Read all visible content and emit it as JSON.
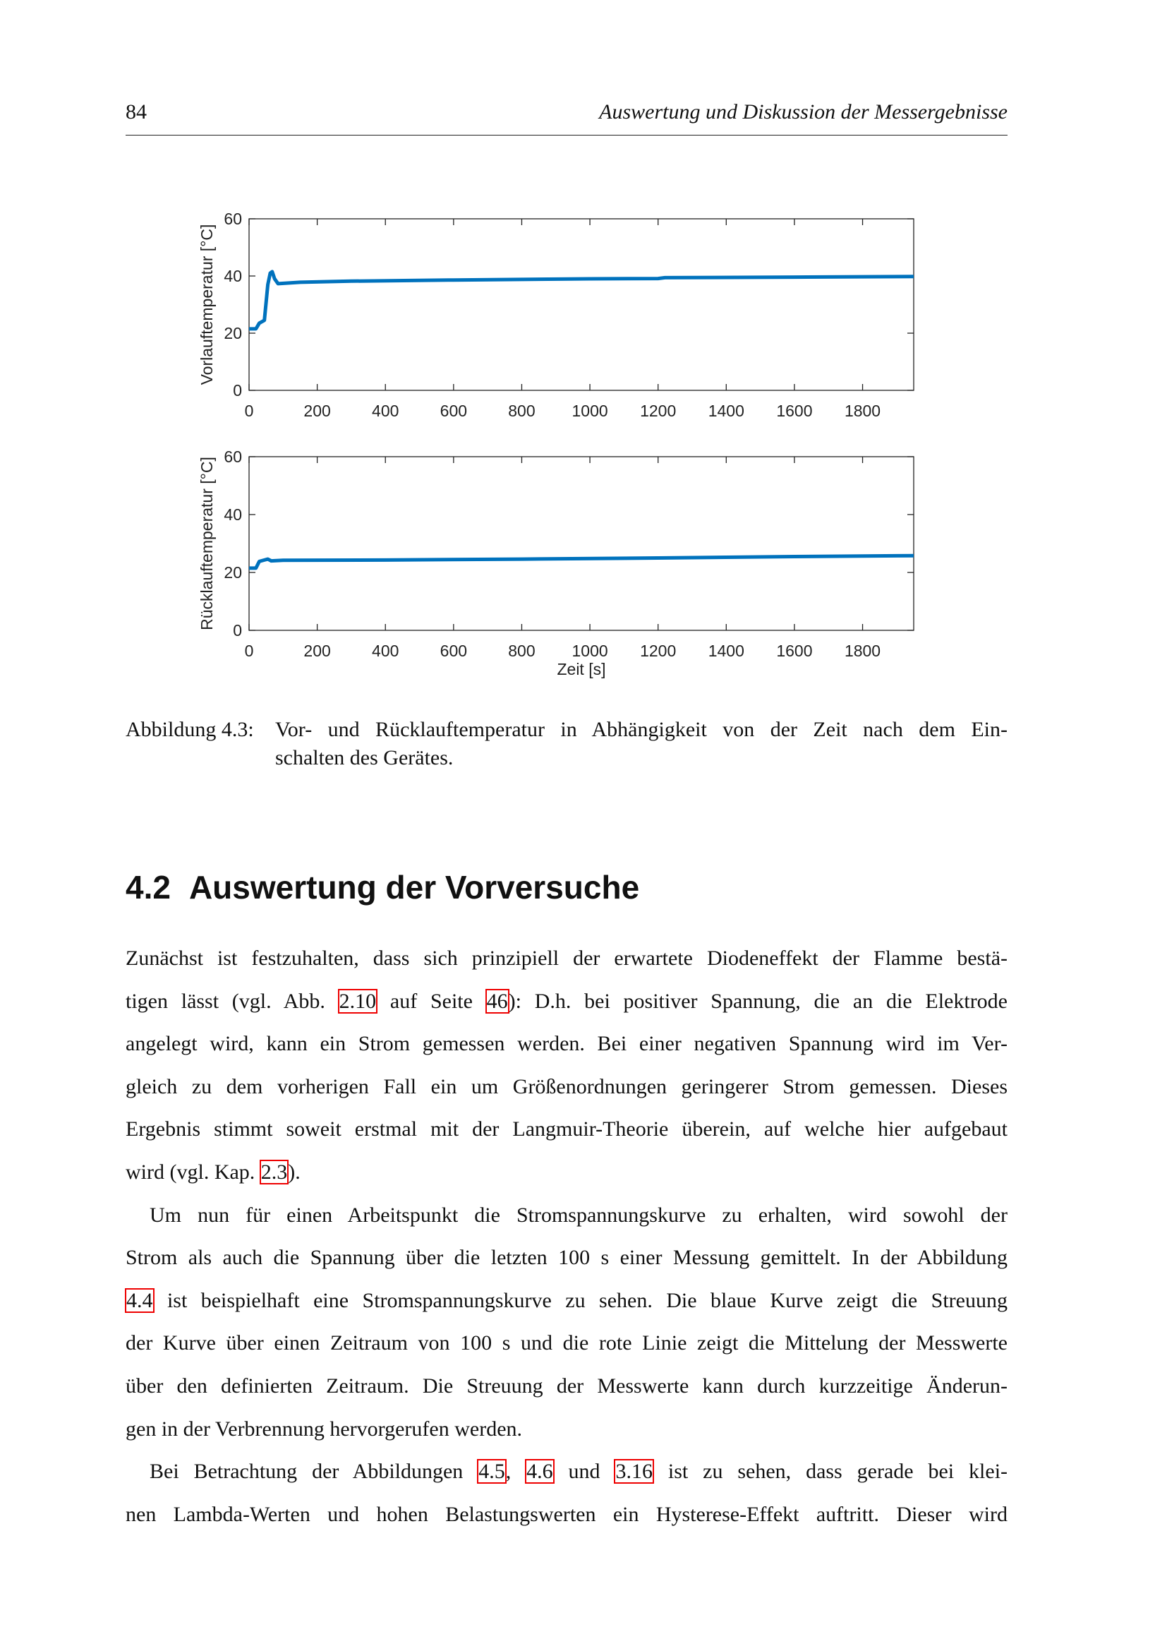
{
  "header": {
    "page_number": "84",
    "running_title": "Auswertung und Diskussion der Messergebnisse"
  },
  "chart_data": [
    {
      "type": "line",
      "xlabel": "",
      "ylabel": "Vorlauftemperatur [°C]",
      "xlim": [
        0,
        1950
      ],
      "ylim": [
        0,
        60
      ],
      "xticks": [
        0,
        200,
        400,
        600,
        800,
        1000,
        1200,
        1400,
        1600,
        1800
      ],
      "yticks": [
        0,
        20,
        40,
        60
      ],
      "grid": false,
      "color": "#0072BD",
      "x": [
        0,
        20,
        30,
        45,
        55,
        62,
        68,
        75,
        85,
        150,
        300,
        600,
        1000,
        1200,
        1220,
        1600,
        1950
      ],
      "y": [
        21.5,
        21.5,
        23.5,
        24.5,
        37,
        41,
        41.5,
        39,
        37.3,
        37.8,
        38.2,
        38.6,
        39,
        39.1,
        39.4,
        39.6,
        39.8
      ]
    },
    {
      "type": "line",
      "xlabel": "Zeit [s]",
      "ylabel": "Rücklauftemperatur [°C]",
      "xlim": [
        0,
        1950
      ],
      "ylim": [
        0,
        60
      ],
      "xticks": [
        0,
        200,
        400,
        600,
        800,
        1000,
        1200,
        1400,
        1600,
        1800
      ],
      "yticks": [
        0,
        20,
        40,
        60
      ],
      "grid": false,
      "color": "#0072BD",
      "x": [
        0,
        20,
        30,
        45,
        55,
        65,
        100,
        400,
        800,
        1200,
        1600,
        1950
      ],
      "y": [
        21.5,
        21.5,
        23.8,
        24.3,
        24.6,
        24,
        24.2,
        24.3,
        24.6,
        25,
        25.5,
        25.8
      ]
    }
  ],
  "caption": {
    "label": "Abbildung 4.3:",
    "line1": "Vor- und Rücklauftemperatur in Abhängigkeit von der Zeit nach dem Ein-",
    "line2": "schalten des Gerätes."
  },
  "section": {
    "number": "4.2",
    "title": "Auswertung der Vorversuche"
  },
  "paragraphs": [
    {
      "indent": false,
      "lines": [
        [
          {
            "t": "Zunächst ist festzuhalten, dass sich prinzipiell der erwartete Diodeneffekt der Flamme bestä-"
          }
        ],
        [
          {
            "t": "tigen lässt (vgl. Abb. "
          },
          {
            "t": "2.10",
            "ref": true
          },
          {
            "t": " auf Seite "
          },
          {
            "t": "46",
            "ref": true
          },
          {
            "t": "): D.h. bei positiver Spannung, die an die Elektrode"
          }
        ],
        [
          {
            "t": "angelegt wird, kann ein Strom gemessen werden. Bei einer negativen Spannung wird im Ver-"
          }
        ],
        [
          {
            "t": "gleich zu dem vorherigen Fall ein um Größenordnungen geringerer Strom gemessen. Dieses"
          }
        ],
        [
          {
            "t": "Ergebnis stimmt soweit erstmal mit der Langmuir-Theorie überein, auf welche hier aufgebaut"
          }
        ],
        [
          {
            "t": "wird (vgl. Kap. "
          },
          {
            "t": "2.3",
            "ref": true
          },
          {
            "t": ")."
          }
        ]
      ]
    },
    {
      "indent": true,
      "lines": [
        [
          {
            "t": "Um nun für einen Arbeitspunkt die Stromspannungskurve zu erhalten, wird sowohl der"
          }
        ],
        [
          {
            "t": "Strom als auch die Spannung über die letzten 100 s einer Messung gemittelt. In der Abbildung"
          }
        ],
        [
          {
            "t": "4.4",
            "ref": true
          },
          {
            "t": " ist beispielhaft eine Stromspannungskurve zu sehen. Die blaue Kurve zeigt die Streuung"
          }
        ],
        [
          {
            "t": "der Kurve über einen Zeitraum von 100 s und die rote Linie zeigt die Mittelung der Messwerte"
          }
        ],
        [
          {
            "t": "über den definierten Zeitraum. Die Streuung der Messwerte kann durch kurzzeitige Änderun-"
          }
        ],
        [
          {
            "t": "gen in der Verbrennung hervorgerufen werden."
          }
        ]
      ]
    },
    {
      "indent": true,
      "continues": true,
      "lines": [
        [
          {
            "t": "Bei Betrachtung der Abbildungen "
          },
          {
            "t": "4.5",
            "ref": true
          },
          {
            "t": ", "
          },
          {
            "t": "4.6",
            "ref": true
          },
          {
            "t": " und "
          },
          {
            "t": "3.16",
            "ref": true
          },
          {
            "t": " ist zu sehen, dass gerade bei klei-"
          }
        ],
        [
          {
            "t": "nen Lambda-Werten und hohen Belastungswerten ein Hysterese-Effekt auftritt. Dieser wird"
          }
        ]
      ]
    }
  ]
}
